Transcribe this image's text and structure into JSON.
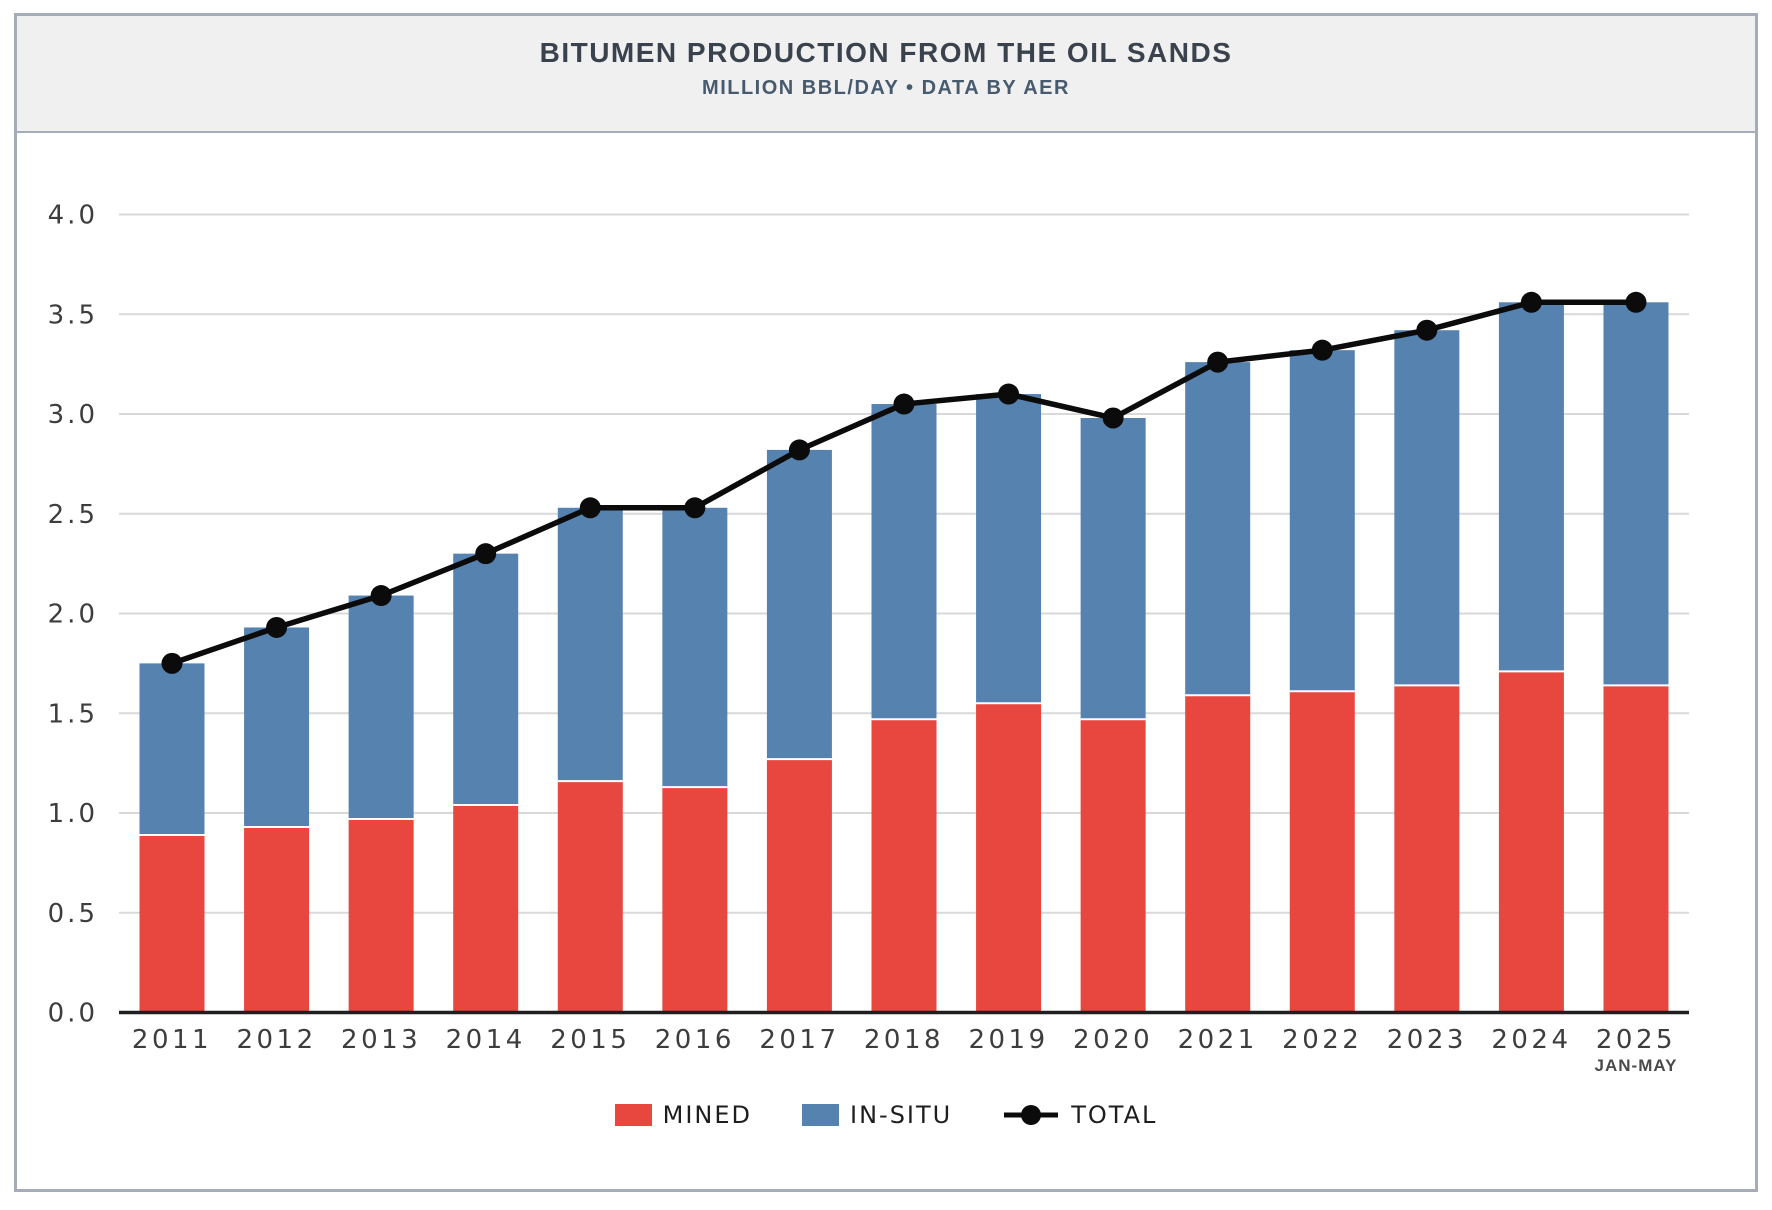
{
  "chart_data": {
    "type": "bar",
    "stacked": true,
    "title": "BITUMEN PRODUCTION FROM THE OIL SANDS",
    "subtitle": "MILLION BBL/DAY • DATA BY AER",
    "categories": [
      "2011",
      "2012",
      "2013",
      "2014",
      "2015",
      "2016",
      "2017",
      "2018",
      "2019",
      "2020",
      "2021",
      "2022",
      "2023",
      "2024",
      "2025"
    ],
    "series": [
      {
        "name": "MINED",
        "color": "#e8473f",
        "values": [
          0.89,
          0.93,
          0.97,
          1.04,
          1.16,
          1.13,
          1.27,
          1.47,
          1.55,
          1.47,
          1.59,
          1.61,
          1.64,
          1.71,
          1.64
        ]
      },
      {
        "name": "IN-SITU",
        "color": "#5682b0",
        "values": [
          0.86,
          1.0,
          1.12,
          1.26,
          1.37,
          1.4,
          1.55,
          1.58,
          1.55,
          1.51,
          1.67,
          1.71,
          1.78,
          1.85,
          1.92
        ]
      }
    ],
    "line": {
      "name": "TOTAL",
      "color": "#0b0b0b",
      "values": [
        1.75,
        1.93,
        2.09,
        2.3,
        2.53,
        2.53,
        2.82,
        3.05,
        3.1,
        2.98,
        3.26,
        3.32,
        3.42,
        3.56,
        3.56
      ]
    },
    "xlabel": "",
    "ylabel": "",
    "ylim": [
      0,
      4
    ],
    "yticks": [
      "0.0",
      "0.5",
      "1.0",
      "1.5",
      "2.0",
      "2.5",
      "3.0",
      "3.5",
      "4.0"
    ],
    "x_note": {
      "category": "2025",
      "label": "JAN-MAY"
    },
    "grid": "horizontal",
    "legend_position": "bottom",
    "colors": {
      "grid": "#d9d9d9",
      "axis": "#1f1f1f",
      "tick_text": "#3d3d3d",
      "panel_border": "#a6adb8",
      "header_bg": "#f0f0f1"
    }
  }
}
